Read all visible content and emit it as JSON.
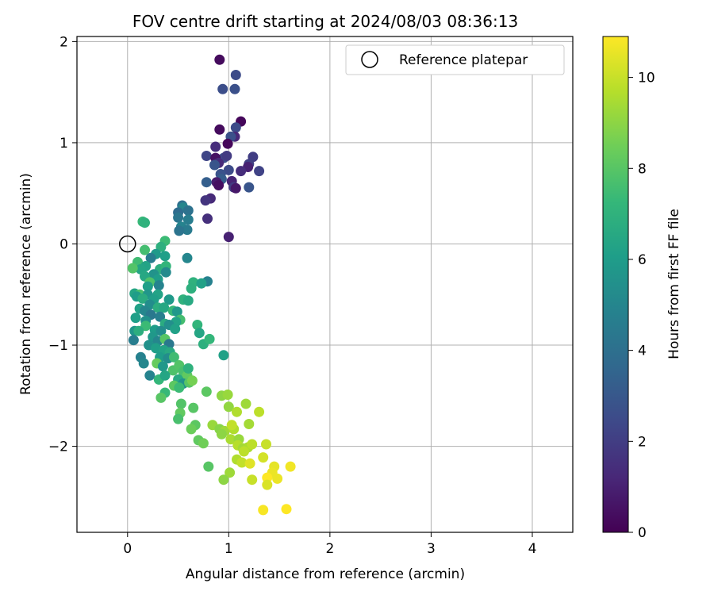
{
  "chart_data": {
    "type": "scatter",
    "title": "FOV centre drift starting at 2024/08/03 08:36:13",
    "xlabel": "Angular distance from reference (arcmin)",
    "ylabel": "Rotation from reference (arcmin)",
    "xlim": [
      -0.5,
      4.4
    ],
    "ylim": [
      -2.85,
      2.05
    ],
    "xticks": [
      0,
      1,
      2,
      3,
      4
    ],
    "yticks": [
      -2,
      -1,
      0,
      1,
      2
    ],
    "xtick_labels": [
      "0",
      "1",
      "2",
      "3",
      "4"
    ],
    "ytick_labels": [
      "−2",
      "−1",
      "0",
      "1",
      "2"
    ],
    "grid": true,
    "legend": {
      "position": "top-right",
      "label": "Reference platepar"
    },
    "reference_point": {
      "x": 0,
      "y": 0
    },
    "colorbar": {
      "label": "Hours from first FF file",
      "range": [
        0,
        10.9
      ],
      "ticks": [
        0,
        2,
        4,
        6,
        8,
        10
      ],
      "tick_labels": [
        "0",
        "2",
        "4",
        "6",
        "8",
        "10"
      ],
      "colormap": "viridis",
      "stops": [
        "#440154",
        "#482878",
        "#3e4989",
        "#31688e",
        "#26828e",
        "#1f9e89",
        "#35b779",
        "#6ece58",
        "#b5de2b",
        "#fde725"
      ]
    },
    "points": [
      [
        0.91,
        1.82,
        0.3
      ],
      [
        1.07,
        1.67,
        2.5
      ],
      [
        0.94,
        1.53,
        2.6
      ],
      [
        1.06,
        1.53,
        2.7
      ],
      [
        1.12,
        1.21,
        0.2
      ],
      [
        1.07,
        1.15,
        2.5
      ],
      [
        0.91,
        1.13,
        0.3
      ],
      [
        1.06,
        1.06,
        1.2
      ],
      [
        1.02,
        1.06,
        2.7
      ],
      [
        0.99,
        0.99,
        0.2
      ],
      [
        0.87,
        0.96,
        1.4
      ],
      [
        1.24,
        0.86,
        2.0
      ],
      [
        0.95,
        0.85,
        2.6
      ],
      [
        0.78,
        0.87,
        2.3
      ],
      [
        0.87,
        0.85,
        0.5
      ],
      [
        0.98,
        0.87,
        1.9
      ],
      [
        0.9,
        0.8,
        1.3
      ],
      [
        1.2,
        0.79,
        2.1
      ],
      [
        1.19,
        0.76,
        1.0
      ],
      [
        0.86,
        0.78,
        2.9
      ],
      [
        1.3,
        0.72,
        2.2
      ],
      [
        1.12,
        0.72,
        1.4
      ],
      [
        1.0,
        0.73,
        2.5
      ],
      [
        0.92,
        0.69,
        2.8
      ],
      [
        0.93,
        0.64,
        3.2
      ],
      [
        1.03,
        0.62,
        1.1
      ],
      [
        0.88,
        0.61,
        0.8
      ],
      [
        0.78,
        0.61,
        3.3
      ],
      [
        0.9,
        0.58,
        0.4
      ],
      [
        1.05,
        0.56,
        1.9
      ],
      [
        1.07,
        0.55,
        0.7
      ],
      [
        1.2,
        0.56,
        2.9
      ],
      [
        0.54,
        0.38,
        4.0
      ],
      [
        0.55,
        0.36,
        5.0
      ],
      [
        0.6,
        0.33,
        4.1
      ],
      [
        0.5,
        0.31,
        3.8
      ],
      [
        0.79,
        0.25,
        1.5
      ],
      [
        0.5,
        0.26,
        4.3
      ],
      [
        0.6,
        0.24,
        4.6
      ],
      [
        0.82,
        0.45,
        1.3
      ],
      [
        0.77,
        0.43,
        1.7
      ],
      [
        0.53,
        0.17,
        4.9
      ],
      [
        0.59,
        0.14,
        4.5
      ],
      [
        0.51,
        0.13,
        4.2
      ],
      [
        1.0,
        0.07,
        1.0
      ],
      [
        0.15,
        0.22,
        7.3
      ],
      [
        0.17,
        0.21,
        7.0
      ],
      [
        0.37,
        0.03,
        7.4
      ],
      [
        0.33,
        -0.03,
        6.9
      ],
      [
        0.17,
        -0.06,
        7.6
      ],
      [
        0.28,
        -0.1,
        5.9
      ],
      [
        0.37,
        -0.12,
        6.1
      ],
      [
        0.23,
        -0.14,
        4.6
      ],
      [
        0.59,
        -0.14,
        5.0
      ],
      [
        0.1,
        -0.18,
        7.5
      ],
      [
        0.18,
        -0.22,
        6.3
      ],
      [
        0.13,
        -0.25,
        6.4
      ],
      [
        0.05,
        -0.24,
        7.9
      ],
      [
        0.32,
        -0.25,
        6.8
      ],
      [
        0.38,
        -0.22,
        7.1
      ],
      [
        0.26,
        -0.3,
        5.6
      ],
      [
        0.38,
        -0.28,
        5.2
      ],
      [
        0.17,
        -0.32,
        6.5
      ],
      [
        0.3,
        -0.35,
        6.0
      ],
      [
        0.22,
        -0.38,
        7.8
      ],
      [
        0.65,
        -0.38,
        7.0
      ],
      [
        0.79,
        -0.37,
        4.8
      ],
      [
        0.2,
        -0.42,
        6.1
      ],
      [
        0.31,
        -0.41,
        4.9
      ],
      [
        0.73,
        -0.39,
        6.2
      ],
      [
        0.63,
        -0.44,
        6.9
      ],
      [
        0.07,
        -0.49,
        6.4
      ],
      [
        0.12,
        -0.5,
        7.7
      ],
      [
        0.09,
        -0.52,
        6.0
      ],
      [
        0.2,
        -0.5,
        5.7
      ],
      [
        0.3,
        -0.5,
        6.3
      ],
      [
        0.15,
        -0.54,
        6.7
      ],
      [
        0.26,
        -0.55,
        6.1
      ],
      [
        0.41,
        -0.55,
        5.9
      ],
      [
        0.55,
        -0.55,
        7.0
      ],
      [
        0.6,
        -0.56,
        6.6
      ],
      [
        0.22,
        -0.6,
        5.3
      ],
      [
        0.12,
        -0.64,
        6.2
      ],
      [
        0.3,
        -0.63,
        6.8
      ],
      [
        0.17,
        -0.66,
        5.0
      ],
      [
        0.36,
        -0.63,
        6.5
      ],
      [
        0.23,
        -0.7,
        4.4
      ],
      [
        0.45,
        -0.66,
        7.3
      ],
      [
        0.49,
        -0.67,
        5.8
      ],
      [
        0.08,
        -0.73,
        6.1
      ],
      [
        0.32,
        -0.72,
        4.7
      ],
      [
        0.18,
        -0.76,
        5.5
      ],
      [
        0.52,
        -0.75,
        7.6
      ],
      [
        0.48,
        -0.77,
        6.3
      ],
      [
        0.18,
        -0.81,
        7.4
      ],
      [
        0.37,
        -0.79,
        6.7
      ],
      [
        0.41,
        -0.8,
        5.4
      ],
      [
        0.69,
        -0.8,
        7.1
      ],
      [
        0.07,
        -0.86,
        5.7
      ],
      [
        0.11,
        -0.86,
        6.8
      ],
      [
        0.27,
        -0.85,
        6.0
      ],
      [
        0.33,
        -0.86,
        5.3
      ],
      [
        0.47,
        -0.84,
        6.2
      ],
      [
        0.71,
        -0.88,
        6.4
      ],
      [
        0.06,
        -0.95,
        4.6
      ],
      [
        0.25,
        -0.92,
        5.8
      ],
      [
        0.3,
        -0.96,
        5.0
      ],
      [
        0.37,
        -0.94,
        8.0
      ],
      [
        0.41,
        -0.99,
        4.4
      ],
      [
        0.21,
        -1.0,
        5.5
      ],
      [
        0.28,
        -1.03,
        6.1
      ],
      [
        0.36,
        -1.05,
        6.3
      ],
      [
        0.42,
        -1.07,
        6.6
      ],
      [
        0.75,
        -0.99,
        6.9
      ],
      [
        0.81,
        -0.94,
        7.2
      ],
      [
        0.13,
        -1.12,
        4.8
      ],
      [
        0.32,
        -1.12,
        6.0
      ],
      [
        0.4,
        -1.13,
        5.3
      ],
      [
        0.46,
        -1.12,
        7.5
      ],
      [
        0.95,
        -1.1,
        6.2
      ],
      [
        0.16,
        -1.18,
        5.0
      ],
      [
        0.29,
        -1.18,
        8.3
      ],
      [
        0.45,
        -1.25,
        7.8
      ],
      [
        0.35,
        -1.21,
        5.8
      ],
      [
        0.22,
        -1.3,
        4.9
      ],
      [
        0.51,
        -1.2,
        7.9
      ],
      [
        0.55,
        -1.26,
        7.7
      ],
      [
        0.59,
        -1.3,
        8.2
      ],
      [
        0.6,
        -1.23,
        7.0
      ],
      [
        0.31,
        -1.34,
        7.2
      ],
      [
        0.37,
        -1.3,
        6.4
      ],
      [
        0.5,
        -1.34,
        6.6
      ],
      [
        0.55,
        -1.38,
        5.6
      ],
      [
        0.61,
        -1.37,
        8.0
      ],
      [
        0.64,
        -1.35,
        8.6
      ],
      [
        0.46,
        -1.4,
        8.1
      ],
      [
        0.51,
        -1.42,
        7.4
      ],
      [
        0.37,
        -1.47,
        7.3
      ],
      [
        0.33,
        -1.52,
        8.0
      ],
      [
        0.78,
        -1.46,
        8.1
      ],
      [
        0.93,
        -1.5,
        9.0
      ],
      [
        0.99,
        -1.49,
        9.2
      ],
      [
        0.53,
        -1.58,
        7.9
      ],
      [
        0.52,
        -1.67,
        8.2
      ],
      [
        0.65,
        -1.62,
        8.0
      ],
      [
        1.0,
        -1.61,
        9.1
      ],
      [
        1.08,
        -1.66,
        9.6
      ],
      [
        1.17,
        -1.58,
        9.3
      ],
      [
        1.3,
        -1.66,
        9.8
      ],
      [
        0.5,
        -1.73,
        7.7
      ],
      [
        0.67,
        -1.79,
        8.1
      ],
      [
        0.63,
        -1.83,
        8.4
      ],
      [
        0.84,
        -1.79,
        9.2
      ],
      [
        0.91,
        -1.83,
        8.9
      ],
      [
        0.96,
        -1.85,
        9.3
      ],
      [
        1.05,
        -1.83,
        9.6
      ],
      [
        1.03,
        -1.79,
        9.9
      ],
      [
        1.2,
        -1.78,
        9.4
      ],
      [
        0.93,
        -1.88,
        9.0
      ],
      [
        1.02,
        -1.93,
        9.5
      ],
      [
        1.1,
        -1.93,
        9.2
      ],
      [
        0.7,
        -1.94,
        8.2
      ],
      [
        0.75,
        -1.97,
        8.5
      ],
      [
        1.09,
        -1.99,
        9.7
      ],
      [
        1.14,
        -2.02,
        9.4
      ],
      [
        1.19,
        -2.01,
        9.5
      ],
      [
        1.23,
        -1.98,
        9.8
      ],
      [
        1.37,
        -1.98,
        10.0
      ],
      [
        1.15,
        -2.05,
        9.8
      ],
      [
        1.34,
        -2.11,
        10.2
      ],
      [
        1.08,
        -2.13,
        9.6
      ],
      [
        1.13,
        -2.16,
        9.9
      ],
      [
        1.21,
        -2.17,
        10.4
      ],
      [
        0.8,
        -2.2,
        8.0
      ],
      [
        1.45,
        -2.2,
        10.5
      ],
      [
        1.61,
        -2.2,
        10.7
      ],
      [
        1.43,
        -2.26,
        10.6
      ],
      [
        1.38,
        -2.31,
        10.9
      ],
      [
        1.48,
        -2.32,
        10.6
      ],
      [
        1.01,
        -2.26,
        9.3
      ],
      [
        0.95,
        -2.33,
        9.0
      ],
      [
        1.23,
        -2.33,
        10.0
      ],
      [
        1.38,
        -2.38,
        10.3
      ],
      [
        1.34,
        -2.63,
        10.8
      ],
      [
        1.57,
        -2.62,
        10.9
      ]
    ]
  }
}
